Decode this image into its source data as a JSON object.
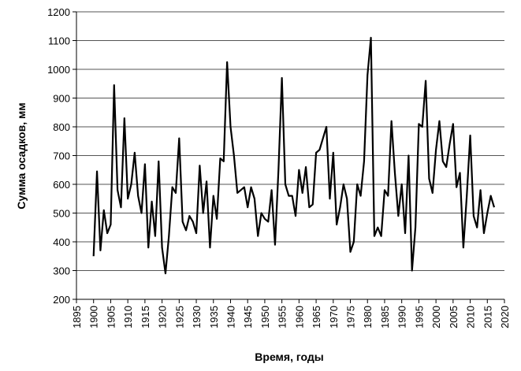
{
  "chart_data": {
    "type": "line",
    "x_label": "Время, годы",
    "y_label": "Сумма осадков, мм",
    "x": [
      1900,
      1901,
      1902,
      1903,
      1904,
      1905,
      1906,
      1907,
      1908,
      1909,
      1910,
      1911,
      1912,
      1913,
      1914,
      1915,
      1916,
      1917,
      1918,
      1919,
      1920,
      1921,
      1922,
      1923,
      1924,
      1925,
      1926,
      1927,
      1928,
      1929,
      1930,
      1931,
      1932,
      1933,
      1934,
      1935,
      1936,
      1937,
      1938,
      1939,
      1940,
      1941,
      1942,
      1943,
      1944,
      1945,
      1946,
      1947,
      1948,
      1949,
      1950,
      1951,
      1952,
      1953,
      1954,
      1955,
      1956,
      1957,
      1958,
      1959,
      1960,
      1961,
      1962,
      1963,
      1964,
      1965,
      1966,
      1967,
      1968,
      1969,
      1970,
      1971,
      1972,
      1973,
      1974,
      1975,
      1976,
      1977,
      1978,
      1979,
      1980,
      1981,
      1982,
      1983,
      1984,
      1985,
      1986,
      1987,
      1988,
      1989,
      1990,
      1991,
      1992,
      1993,
      1994,
      1995,
      1996,
      1997,
      1998,
      1999,
      2000,
      2001,
      2002,
      2003,
      2004,
      2005,
      2006,
      2007,
      2008,
      2009,
      2010,
      2011,
      2012,
      2013,
      2014,
      2015,
      2016,
      2017
    ],
    "series": [
      {
        "color": "#000000",
        "values": [
          350,
          645,
          370,
          510,
          430,
          460,
          945,
          580,
          520,
          830,
          550,
          600,
          710,
          560,
          500,
          670,
          380,
          540,
          420,
          680,
          380,
          290,
          420,
          590,
          570,
          760,
          470,
          440,
          490,
          470,
          430,
          665,
          500,
          610,
          380,
          560,
          480,
          690,
          680,
          1025,
          800,
          700,
          570,
          580,
          590,
          520,
          590,
          550,
          420,
          500,
          480,
          470,
          580,
          390,
          650,
          970,
          600,
          560,
          560,
          490,
          650,
          570,
          660,
          520,
          530,
          710,
          720,
          760,
          800,
          550,
          710,
          460,
          520,
          600,
          550,
          365,
          400,
          600,
          560,
          680,
          980,
          1110,
          420,
          450,
          420,
          580,
          560,
          820,
          640,
          490,
          600,
          430,
          700,
          300,
          450,
          810,
          800,
          960,
          620,
          570,
          720,
          820,
          680,
          660,
          740,
          810,
          590,
          640,
          380,
          560,
          770,
          490,
          450,
          580,
          430,
          500,
          560,
          520
        ]
      }
    ],
    "xlim": [
      1895,
      2020
    ],
    "xticks": [
      1895,
      1900,
      1905,
      1910,
      1915,
      1920,
      1925,
      1930,
      1935,
      1940,
      1945,
      1950,
      1955,
      1960,
      1965,
      1970,
      1975,
      1980,
      1985,
      1990,
      1995,
      2000,
      2005,
      2010,
      2015,
      2020
    ],
    "ylim": [
      200,
      1200
    ],
    "yticks": [
      200,
      300,
      400,
      500,
      600,
      700,
      800,
      900,
      1000,
      1100,
      1200
    ],
    "grid": true
  }
}
